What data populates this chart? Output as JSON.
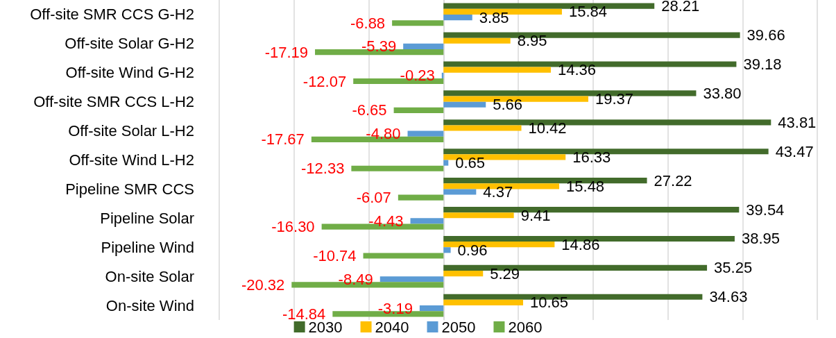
{
  "chart_data": {
    "type": "bar",
    "orientation": "horizontal",
    "categories": [
      "Off-site SMR CCS G-H2",
      "Off-site Solar G-H2",
      "Off-site Wind G-H2",
      "Off-site SMR CCS L-H2",
      "Off-site Solar L-H2",
      "Off-site Wind L-H2",
      "Pipeline SMR CCS",
      "Pipeline Solar",
      "Pipeline Wind",
      "On-site Solar",
      "On-site Wind"
    ],
    "series": [
      {
        "name": "2030",
        "color": "#426b2b",
        "values": [
          28.21,
          39.66,
          39.18,
          33.8,
          43.81,
          43.47,
          27.22,
          39.54,
          38.95,
          35.25,
          34.63
        ],
        "value_labels": [
          "28.21",
          "39.66",
          "39.18",
          "33.80",
          "43.81",
          "43.47",
          "27.22",
          "39.54",
          "38.95",
          "35.25",
          "34.63"
        ]
      },
      {
        "name": "2040",
        "color": "#ffc000",
        "values": [
          15.84,
          8.95,
          14.36,
          19.37,
          10.42,
          16.33,
          15.48,
          9.41,
          14.86,
          5.29,
          10.65
        ],
        "value_labels": [
          "15.84",
          "8.95",
          "14.36",
          "19.37",
          "10.42",
          "16.33",
          "15.48",
          "9.41",
          "14.86",
          "5.29",
          "10.65"
        ]
      },
      {
        "name": "2050",
        "color": "#5b9bd5",
        "values": [
          3.85,
          -5.39,
          -0.23,
          5.66,
          -4.8,
          0.65,
          4.37,
          -4.43,
          0.96,
          -8.49,
          -3.19
        ],
        "value_labels": [
          "3.85",
          "-5.39",
          "-0.23",
          "5.66",
          "-4.80",
          "0.65",
          "4.37",
          "-4.43",
          "0.96",
          "-8.49",
          "-3.19"
        ]
      },
      {
        "name": "2060",
        "color": "#70ad47",
        "values": [
          -6.88,
          -17.19,
          -12.07,
          -6.65,
          -17.67,
          -12.33,
          -6.07,
          -16.3,
          -10.74,
          -20.32,
          -14.84
        ],
        "value_labels": [
          "-6.88",
          "-17.19",
          "-12.07",
          "-6.65",
          "-17.67",
          "-12.33",
          "-6.07",
          "-16.30",
          "-10.74",
          "-20.32",
          "-14.84"
        ]
      }
    ],
    "xlim": [
      -30,
      50
    ],
    "xticks": [
      {
        "value": -30,
        "label": null
      },
      {
        "value": -20,
        "label": null
      },
      {
        "value": -10,
        "label": null
      },
      {
        "value": 0,
        "label": null
      },
      {
        "value": 10,
        "label": null
      },
      {
        "value": 20,
        "label": null
      },
      {
        "value": 30,
        "label": null
      },
      {
        "value": 40,
        "label": null
      },
      {
        "value": 50,
        "label": null
      }
    ],
    "tick_labels": "y",
    "grid": "x",
    "legend": "bottom"
  }
}
